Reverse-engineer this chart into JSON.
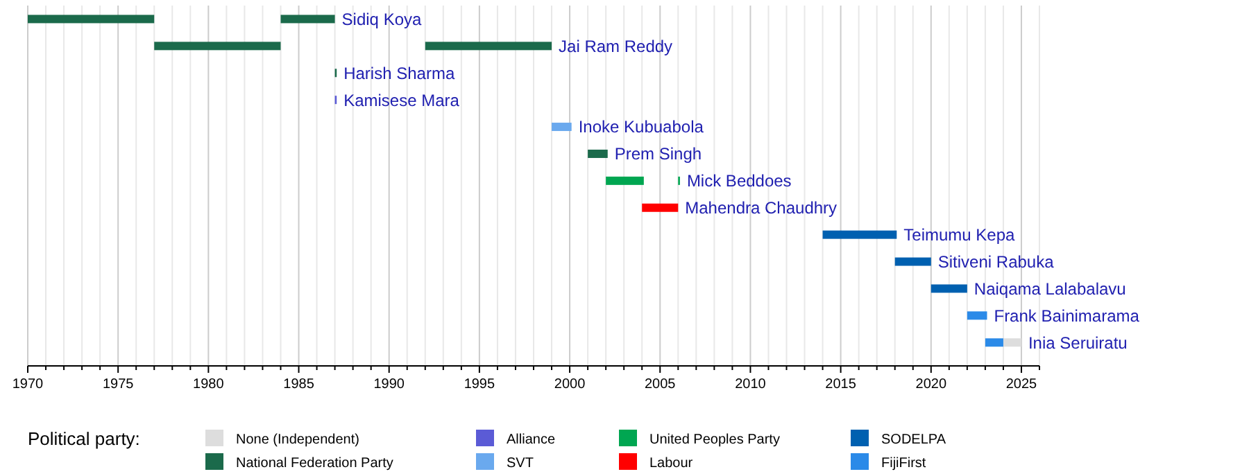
{
  "chart_data": {
    "type": "bar",
    "orientation": "horizontal",
    "legend_title": "Political party:",
    "legend": "bottom",
    "grid": "x",
    "categories": [
      "Sidiq Koya",
      "Jai Ram Reddy",
      "Harish Sharma",
      "Kamisese Mara",
      "Inoke Kubuabola",
      "Prem Singh",
      "Mick Beddoes",
      "Mahendra Chaudhry",
      "Teimumu Kepa",
      "Sitiveni Rabuka",
      "Naiqama Lalabalavu",
      "Frank Bainimarama",
      "Inia Seruiratu"
    ],
    "xlim": [
      1970,
      2026
    ],
    "xticks": [
      1970,
      {
        "value": 1971,
        "label": null
      },
      {
        "value": 1972,
        "label": null
      },
      {
        "value": 1973,
        "label": null
      },
      {
        "value": 1974,
        "label": null
      },
      1975,
      {
        "value": 1976,
        "label": null
      },
      {
        "value": 1977,
        "label": null
      },
      {
        "value": 1978,
        "label": null
      },
      {
        "value": 1979,
        "label": null
      },
      1980,
      {
        "value": 1981,
        "label": null
      },
      {
        "value": 1982,
        "label": null
      },
      {
        "value": 1983,
        "label": null
      },
      {
        "value": 1984,
        "label": null
      },
      1985,
      {
        "value": 1986,
        "label": null
      },
      {
        "value": 1987,
        "label": null
      },
      {
        "value": 1988,
        "label": null
      },
      {
        "value": 1989,
        "label": null
      },
      1990,
      {
        "value": 1991,
        "label": null
      },
      {
        "value": 1992,
        "label": null
      },
      {
        "value": 1993,
        "label": null
      },
      {
        "value": 1994,
        "label": null
      },
      1995,
      {
        "value": 1996,
        "label": null
      },
      {
        "value": 1997,
        "label": null
      },
      {
        "value": 1998,
        "label": null
      },
      {
        "value": 1999,
        "label": null
      },
      2000,
      {
        "value": 2001,
        "label": null
      },
      {
        "value": 2002,
        "label": null
      },
      {
        "value": 2003,
        "label": null
      },
      {
        "value": 2004,
        "label": null
      },
      2005,
      {
        "value": 2006,
        "label": null
      },
      {
        "value": 2007,
        "label": null
      },
      {
        "value": 2008,
        "label": null
      },
      {
        "value": 2009,
        "label": null
      },
      2010,
      {
        "value": 2011,
        "label": null
      },
      {
        "value": 2012,
        "label": null
      },
      {
        "value": 2013,
        "label": null
      },
      {
        "value": 2014,
        "label": null
      },
      2015,
      {
        "value": 2016,
        "label": null
      },
      {
        "value": 2017,
        "label": null
      },
      {
        "value": 2018,
        "label": null
      },
      {
        "value": 2019,
        "label": null
      },
      2020,
      {
        "value": 2021,
        "label": null
      },
      {
        "value": 2022,
        "label": null
      },
      {
        "value": 2023,
        "label": null
      },
      {
        "value": 2024,
        "label": null
      },
      2025,
      {
        "value": 2026,
        "label": null
      }
    ],
    "series": [
      {
        "name": "None (Independent)",
        "color": "#dddddd",
        "base": [
          null,
          null,
          null,
          null,
          null,
          null,
          null,
          null,
          null,
          null,
          null,
          null,
          2024
        ],
        "values": [
          null,
          null,
          null,
          null,
          null,
          null,
          null,
          null,
          null,
          null,
          null,
          null,
          1
        ]
      },
      {
        "name": "National Federation Party",
        "color": "#1b6a4b",
        "base": [
          1970,
          1977,
          1987,
          null,
          null,
          2001,
          null,
          null,
          null,
          null,
          null,
          null,
          null
        ],
        "values": [
          7,
          7,
          0.1,
          null,
          null,
          1.1,
          null,
          null,
          null,
          null,
          null,
          null,
          null
        ]
      },
      {
        "color": "#1b6a4b",
        "base": [
          1984,
          1992,
          null,
          null,
          null,
          null,
          null,
          null,
          null,
          null,
          null,
          null,
          null
        ],
        "values": [
          3,
          7,
          null,
          null,
          null,
          null,
          null,
          null,
          null,
          null,
          null,
          null,
          null
        ]
      },
      {
        "name": "Alliance",
        "color": "#5b5bd6",
        "base": [
          null,
          null,
          null,
          1987,
          null,
          null,
          null,
          null,
          null,
          null,
          null,
          null,
          null
        ],
        "values": [
          null,
          null,
          null,
          0.1,
          null,
          null,
          null,
          null,
          null,
          null,
          null,
          null,
          null
        ]
      },
      {
        "name": "SVT",
        "color": "#6aa9ee",
        "base": [
          null,
          null,
          null,
          null,
          1999,
          null,
          null,
          null,
          null,
          null,
          null,
          null,
          null
        ],
        "values": [
          null,
          null,
          null,
          null,
          1.1,
          null,
          null,
          null,
          null,
          null,
          null,
          null,
          null
        ]
      },
      {
        "name": "United Peoples Party",
        "color": "#00a651",
        "base": [
          null,
          null,
          null,
          null,
          null,
          null,
          2002,
          null,
          null,
          null,
          null,
          null,
          null
        ],
        "values": [
          null,
          null,
          null,
          null,
          null,
          null,
          2.1,
          null,
          null,
          null,
          null,
          null,
          null
        ]
      },
      {
        "color": "#00a651",
        "base": [
          null,
          null,
          null,
          null,
          null,
          null,
          2006,
          null,
          null,
          null,
          null,
          null,
          null
        ],
        "values": [
          null,
          null,
          null,
          null,
          null,
          null,
          0.1,
          null,
          null,
          null,
          null,
          null,
          null
        ]
      },
      {
        "name": "Labour",
        "color": "#ff0000",
        "base": [
          null,
          null,
          null,
          null,
          null,
          null,
          null,
          2004,
          null,
          null,
          null,
          null,
          null
        ],
        "values": [
          null,
          null,
          null,
          null,
          null,
          null,
          null,
          2,
          null,
          null,
          null,
          null,
          null
        ]
      },
      {
        "name": "SODELPA",
        "color": "#0060b0",
        "base": [
          null,
          null,
          null,
          null,
          null,
          null,
          null,
          null,
          2014,
          2018,
          2020,
          null,
          null
        ],
        "values": [
          null,
          null,
          null,
          null,
          null,
          null,
          null,
          null,
          4.1,
          2,
          2,
          null,
          null
        ]
      },
      {
        "name": "FijiFirst",
        "color": "#2b8ae8",
        "base": [
          null,
          null,
          null,
          null,
          null,
          null,
          null,
          null,
          null,
          null,
          null,
          2022,
          2023
        ],
        "values": [
          null,
          null,
          null,
          null,
          null,
          null,
          null,
          null,
          null,
          null,
          null,
          1.1,
          1
        ]
      }
    ]
  }
}
